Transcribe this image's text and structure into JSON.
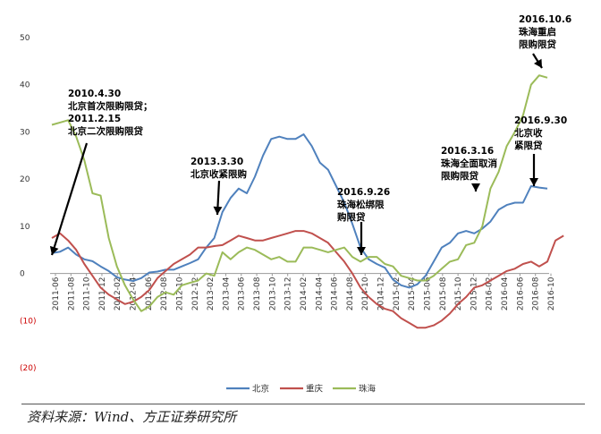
{
  "chart_data": {
    "type": "line",
    "ylim": [
      -20,
      50
    ],
    "y_ticks": [
      {
        "value": 50,
        "label": "50"
      },
      {
        "value": 40,
        "label": "40"
      },
      {
        "value": 30,
        "label": "30"
      },
      {
        "value": 20,
        "label": "20"
      },
      {
        "value": 10,
        "label": "10"
      },
      {
        "value": 0,
        "label": "0"
      },
      {
        "value": -10,
        "label": "(10)"
      },
      {
        "value": -20,
        "label": "(20)"
      }
    ],
    "x_tick_labels": [
      "2011-06",
      "2011-08",
      "2011-10",
      "2011-12",
      "2012-02",
      "2012-04",
      "2012-06",
      "2012-08",
      "2012-10",
      "2012-12",
      "2013-02",
      "2013-04",
      "2013-06",
      "2013-08",
      "2013-10",
      "2013-12",
      "2014-02",
      "2014-04",
      "2014-06",
      "2014-08",
      "2014-10",
      "2014-12",
      "2015-02",
      "2015-04",
      "2015-06",
      "2015-08",
      "2015-10",
      "2015-12",
      "2016-02",
      "2016-04",
      "2016-06",
      "2016-08",
      "2016-10"
    ],
    "grid": false,
    "legend_position": "bottom-center",
    "series": [
      {
        "name": "北京",
        "color": "#4f81bd",
        "values": [
          4.3,
          4.6,
          5.5,
          4.0,
          3.0,
          2.6,
          1.5,
          0.5,
          -0.8,
          -1.3,
          -1.6,
          -1.0,
          0.2,
          0.4,
          0.8,
          0.8,
          1.5,
          2.2,
          3.0,
          5.5,
          7.5,
          13.0,
          16.0,
          18.0,
          17.0,
          20.5,
          25.0,
          28.5,
          29.0,
          28.5,
          28.5,
          29.5,
          27.0,
          23.5,
          22.0,
          18.5,
          15.0,
          10.5,
          5.5,
          3.0,
          2.0,
          1.2,
          -1.3,
          -2.5,
          -3.0,
          -2.3,
          -0.5,
          2.5,
          5.5,
          6.5,
          8.5,
          9.0,
          8.5,
          9.5,
          11.0,
          13.5,
          14.5,
          15.0,
          15.0,
          18.5,
          18.2,
          18.0
        ]
      },
      {
        "name": "重庆",
        "color": "#c0504d",
        "values": [
          7.5,
          8.5,
          7.0,
          5.0,
          2.0,
          -0.5,
          -3.0,
          -4.5,
          -5.5,
          -6.5,
          -6.0,
          -5.0,
          -3.5,
          -1.0,
          0.5,
          2.0,
          3.0,
          4.0,
          5.5,
          5.5,
          5.8,
          6.0,
          7.0,
          8.0,
          7.5,
          7.0,
          7.0,
          7.5,
          8.0,
          8.5,
          9.0,
          9.0,
          8.5,
          7.5,
          6.5,
          4.5,
          2.5,
          0.0,
          -3.0,
          -5.0,
          -6.5,
          -7.5,
          -8.0,
          -9.5,
          -10.5,
          -11.5,
          -11.5,
          -11.0,
          -10.0,
          -8.5,
          -6.5,
          -5.0,
          -3.0,
          -2.5,
          -1.5,
          -0.5,
          0.5,
          1.0,
          2.0,
          2.5,
          1.5,
          2.5,
          7.0,
          8.0
        ]
      },
      {
        "name": "珠海",
        "color": "#9bbb59",
        "values": [
          31.5,
          32.0,
          32.5,
          29.0,
          24.0,
          17.0,
          16.5,
          7.5,
          1.5,
          -2.5,
          -5.5,
          -8.0,
          -7.0,
          -5.0,
          -4.0,
          -4.5,
          -2.5,
          -2.0,
          -1.5,
          0.0,
          -0.5,
          4.5,
          3.0,
          4.5,
          5.5,
          5.0,
          4.0,
          3.0,
          3.5,
          2.5,
          2.5,
          5.5,
          5.5,
          5.0,
          4.5,
          5.0,
          5.5,
          3.5,
          2.5,
          3.5,
          3.5,
          2.0,
          1.5,
          -0.5,
          -1.0,
          -1.5,
          -1.5,
          -0.5,
          1.0,
          2.5,
          3.0,
          6.0,
          6.5,
          10.0,
          18.0,
          21.5,
          27.0,
          30.0,
          33.5,
          40.0,
          42.0,
          41.5
        ]
      }
    ],
    "annotations": [
      {
        "lines": [
          "2010.4.30",
          "北京首次限购限贷；",
          "2011.2.15",
          "北京二次限购限贷"
        ]
      },
      {
        "lines": [
          "2013.3.30",
          "北京收紧限购"
        ]
      },
      {
        "lines": [
          "2016.9.26",
          "珠海松绑限",
          "购限贷"
        ]
      },
      {
        "lines": [
          "2016.3.16",
          "珠海全面取消",
          "限购限贷"
        ]
      },
      {
        "lines": [
          "2016.9.30",
          "北京收",
          "紧限贷"
        ]
      },
      {
        "lines": [
          "2016.10.6",
          "珠海重启",
          "限购限贷"
        ]
      }
    ]
  },
  "source": "资料来源：Wind、方正证券研究所"
}
